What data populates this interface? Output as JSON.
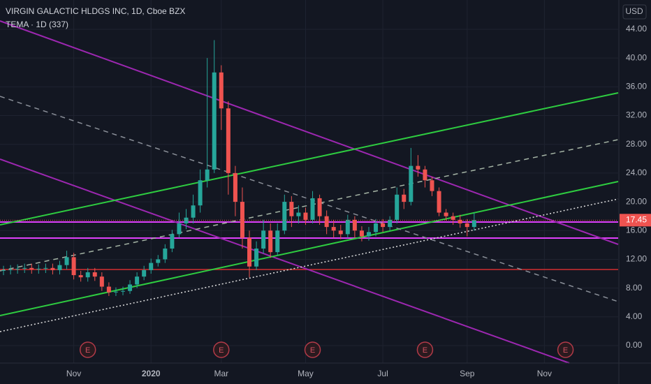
{
  "chart_data": {
    "type": "candlestick",
    "title": "VIRGIN GALACTIC HLDGS INC, 1D, Cboe BZX",
    "subtitle": "TEMA · 1D (337)",
    "currency_button": "USD",
    "up_color": "#26a69a",
    "down_color": "#ef5350",
    "grid": true,
    "ylim": [
      -2.43,
      48.08
    ],
    "yticks": [
      {
        "value": 0,
        "label": "0.00"
      },
      {
        "value": 4,
        "label": "4.00"
      },
      {
        "value": 8,
        "label": "8.00"
      },
      {
        "value": 12,
        "label": "12.00"
      },
      {
        "value": 16,
        "label": "16.00"
      },
      {
        "value": 20,
        "label": "20.00"
      },
      {
        "value": 24,
        "label": "24.00"
      },
      {
        "value": 28,
        "label": "28.00"
      },
      {
        "value": 32,
        "label": "32.00"
      },
      {
        "value": 36,
        "label": "36.00"
      },
      {
        "value": 40,
        "label": "40.00"
      },
      {
        "value": 44,
        "label": "44.00"
      }
    ],
    "last_price": 17.45,
    "categories": [
      null,
      null,
      null,
      null,
      null,
      null,
      null,
      null,
      null,
      null,
      "Nov",
      null,
      null,
      null,
      null,
      null,
      null,
      null,
      null,
      null,
      null,
      "2020",
      null,
      null,
      null,
      null,
      null,
      null,
      null,
      null,
      null,
      "Mar",
      null,
      null,
      null,
      null,
      null,
      null,
      null,
      null,
      null,
      null,
      null,
      "May",
      null,
      null,
      null,
      null,
      null,
      null,
      null,
      null,
      null,
      null,
      "Jul",
      null,
      null,
      null,
      null,
      null,
      null,
      null,
      null,
      null,
      null,
      null,
      "Sep",
      null,
      null,
      null,
      null,
      null,
      null,
      null,
      null,
      null,
      null,
      "Nov",
      null,
      null,
      null,
      null,
      null,
      null,
      null,
      null,
      null,
      null
    ],
    "earnings": [
      null,
      null,
      null,
      null,
      null,
      null,
      null,
      null,
      null,
      null,
      null,
      null,
      "E",
      null,
      null,
      null,
      null,
      null,
      null,
      null,
      null,
      null,
      null,
      null,
      null,
      null,
      null,
      null,
      null,
      null,
      null,
      "E",
      null,
      null,
      null,
      null,
      null,
      null,
      null,
      null,
      null,
      null,
      null,
      null,
      "E",
      null,
      null,
      null,
      null,
      null,
      null,
      null,
      null,
      null,
      null,
      null,
      null,
      null,
      null,
      null,
      "E",
      null,
      null,
      null,
      null,
      null,
      null,
      null,
      null,
      null,
      null,
      null,
      null,
      null,
      null,
      null,
      null,
      null,
      null,
      null,
      "E",
      null,
      null,
      null,
      null,
      null,
      null,
      null
    ],
    "open": [
      10.4,
      10.5,
      10.6,
      10.7,
      10.8,
      10.6,
      10.7,
      10.8,
      10.5,
      11.2,
      12.3,
      9.8,
      9.5,
      10.2,
      9.6,
      8.2,
      7.4,
      7.5,
      7.6,
      8.5,
      9.6,
      10.5,
      11.5,
      12.0,
      13.5,
      15.5,
      17.0,
      17.8,
      19.5,
      23.0,
      24.5,
      38.0,
      33.0,
      24.0,
      20.0,
      15.0,
      11.0,
      13.5,
      16.0,
      13.0,
      16.0,
      20.0,
      18.0,
      18.5,
      17.5,
      20.5,
      18.0,
      16.5,
      16.0,
      15.5,
      17.5,
      16.0,
      15.2,
      15.8,
      17.0,
      16.5,
      17.5,
      21.0,
      20.0,
      25.0,
      24.5,
      23.0,
      21.5,
      18.5,
      18.0,
      17.5,
      17.0,
      16.5,
      null,
      null,
      null,
      null,
      null,
      null,
      null,
      null,
      null,
      null,
      null,
      null,
      null,
      null,
      null,
      null,
      null,
      null,
      null,
      null
    ],
    "high": [
      11.1,
      11.2,
      11.3,
      11.4,
      11.4,
      11.3,
      11.4,
      11.4,
      11.8,
      13.2,
      12.9,
      10.4,
      10.8,
      10.8,
      10.2,
      8.8,
      8.1,
      8.2,
      9.1,
      10.2,
      11.1,
      12.1,
      12.6,
      14.1,
      16.1,
      18.5,
      19.0,
      21.0,
      24.5,
      40.0,
      42.5,
      39.0,
      34.0,
      25.0,
      22.0,
      16.0,
      14.5,
      17.5,
      17.0,
      17.0,
      21.0,
      20.8,
      19.5,
      19.2,
      21.5,
      21.0,
      18.8,
      17.5,
      16.8,
      18.2,
      18.0,
      16.6,
      16.5,
      17.6,
      17.6,
      18.0,
      22.0,
      21.8,
      27.5,
      26.5,
      25.0,
      23.5,
      22.0,
      19.0,
      18.5,
      18.2,
      17.6,
      18.5,
      null,
      null,
      null,
      null,
      null,
      null,
      null,
      null,
      null,
      null,
      null,
      null,
      null,
      null,
      null,
      null,
      null,
      null,
      null,
      null
    ],
    "low": [
      9.8,
      9.9,
      10.0,
      10.1,
      10.0,
      10.0,
      10.1,
      9.9,
      9.9,
      10.6,
      9.2,
      8.9,
      8.9,
      9.0,
      7.6,
      6.9,
      6.9,
      7.0,
      7.2,
      8.0,
      9.1,
      10.0,
      11.0,
      11.5,
      13.0,
      15.0,
      16.2,
      17.0,
      18.5,
      22.0,
      24.0,
      30.0,
      21.0,
      18.0,
      13.5,
      9.5,
      10.5,
      12.8,
      12.2,
      12.5,
      15.5,
      16.5,
      17.0,
      16.8,
      17.0,
      16.8,
      15.5,
      15.0,
      14.8,
      15.0,
      15.0,
      14.5,
      14.6,
      15.2,
      15.8,
      16.0,
      17.0,
      19.0,
      19.5,
      23.5,
      22.0,
      20.8,
      18.0,
      17.4,
      16.8,
      16.4,
      15.2,
      16.0,
      null,
      null,
      null,
      null,
      null,
      null,
      null,
      null,
      null,
      null,
      null,
      null,
      null,
      null,
      null,
      null,
      null,
      null,
      null,
      null
    ],
    "close": [
      10.5,
      10.6,
      10.7,
      10.8,
      10.6,
      10.7,
      10.8,
      10.5,
      11.2,
      12.3,
      9.8,
      9.5,
      10.2,
      9.6,
      8.2,
      7.4,
      7.5,
      7.6,
      8.5,
      9.6,
      10.5,
      11.5,
      12.0,
      13.5,
      15.5,
      17.0,
      17.8,
      19.5,
      23.0,
      24.5,
      38.0,
      33.0,
      24.0,
      20.0,
      15.0,
      11.0,
      13.5,
      16.0,
      13.0,
      16.0,
      20.0,
      18.0,
      18.5,
      17.5,
      20.5,
      18.0,
      16.5,
      16.0,
      15.5,
      17.5,
      16.0,
      15.2,
      15.8,
      17.0,
      16.5,
      17.5,
      21.0,
      20.0,
      25.0,
      24.5,
      23.0,
      21.5,
      18.5,
      18.0,
      17.5,
      17.0,
      16.5,
      17.45,
      null,
      null,
      null,
      null,
      null,
      null,
      null,
      null,
      null,
      null,
      null,
      null,
      null,
      null,
      null,
      null,
      null,
      null,
      null,
      null
    ]
  }
}
